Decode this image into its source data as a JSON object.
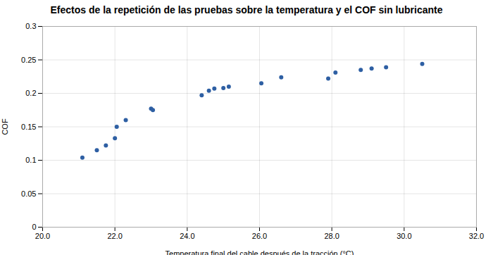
{
  "chart_data": {
    "type": "scatter",
    "title": "Efectos de la repetición de las pruebas sobre la temperatura y el COF sin lubricante",
    "xlabel": "Temperatura final del cable después de la tracción (°C)",
    "ylabel": "COF",
    "x": [
      21.1,
      21.5,
      21.75,
      22.0,
      22.05,
      22.3,
      23.0,
      23.05,
      24.4,
      24.6,
      24.75,
      25.0,
      25.15,
      26.05,
      26.6,
      27.9,
      28.1,
      28.8,
      29.1,
      29.5,
      30.5
    ],
    "y": [
      0.104,
      0.115,
      0.122,
      0.133,
      0.15,
      0.16,
      0.177,
      0.175,
      0.197,
      0.204,
      0.207,
      0.208,
      0.21,
      0.215,
      0.224,
      0.222,
      0.231,
      0.235,
      0.237,
      0.239,
      0.244
    ],
    "color": "#2e5fa3",
    "xlim": [
      20.0,
      32.0
    ],
    "ylim": [
      0,
      0.3
    ],
    "xticks": [
      {
        "value": 20,
        "label": "20.0"
      },
      {
        "value": 22,
        "label": "22.0"
      },
      {
        "value": 24,
        "label": "24.0"
      },
      {
        "value": 26,
        "label": "26.0"
      },
      {
        "value": 28,
        "label": "28.0"
      },
      {
        "value": 30,
        "label": "30.0"
      },
      {
        "value": 32,
        "label": "32.0"
      }
    ],
    "yticks": [
      0,
      0.05,
      0.1,
      0.15,
      0.2,
      0.25,
      0.3
    ],
    "grid": true
  }
}
